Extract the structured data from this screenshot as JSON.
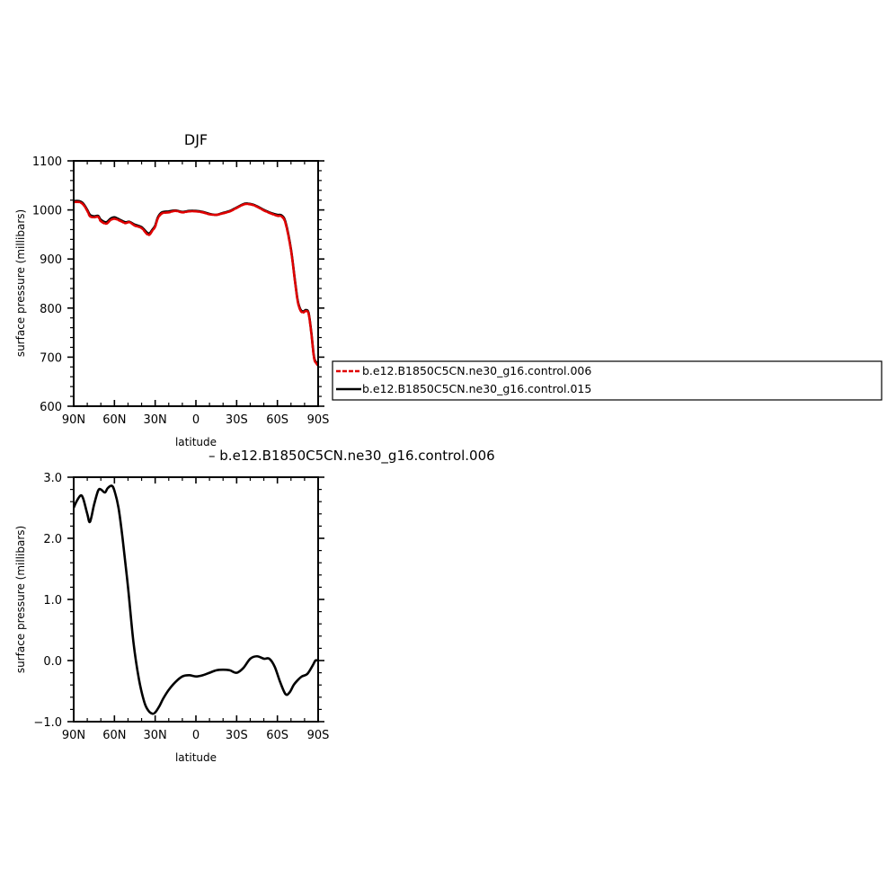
{
  "chart_data": [
    {
      "type": "line",
      "title": "DJF",
      "xlabel": "latitude",
      "ylabel": "surface pressure (millibars)",
      "xlim": [
        90,
        -90
      ],
      "ylim": [
        600,
        1100
      ],
      "xticks": [
        {
          "v": 90,
          "label": "90N"
        },
        {
          "v": 60,
          "label": "60N"
        },
        {
          "v": 30,
          "label": "30N"
        },
        {
          "v": 0,
          "label": "0"
        },
        {
          "v": -30,
          "label": "30S"
        },
        {
          "v": -60,
          "label": "60S"
        },
        {
          "v": -90,
          "label": "90S"
        }
      ],
      "yticks": [
        {
          "v": 600,
          "label": "600"
        },
        {
          "v": 700,
          "label": "700"
        },
        {
          "v": 800,
          "label": "800"
        },
        {
          "v": 900,
          "label": "900"
        },
        {
          "v": 1000,
          "label": "1000"
        },
        {
          "v": 1100,
          "label": "1100"
        }
      ],
      "legend_position": "right",
      "series": [
        {
          "name": "b.e12.B1850C5CN.ne30_g16.control.015",
          "color": "#000000",
          "dash": "solid",
          "x": [
            90,
            86,
            83,
            80,
            78,
            75,
            72,
            70,
            66,
            63,
            60,
            56,
            52,
            49,
            45,
            40,
            35,
            32,
            30,
            28,
            25,
            20,
            15,
            10,
            5,
            0,
            -5,
            -10,
            -15,
            -20,
            -25,
            -30,
            -35,
            -38,
            -42,
            -46,
            -50,
            -55,
            -60,
            -63,
            -66,
            -70,
            -73,
            -75,
            -77,
            -79,
            -81,
            -83,
            -85,
            -87,
            -89,
            -90
          ],
          "y": [
            1018,
            1018,
            1013,
            1000,
            990,
            987,
            988,
            980,
            975,
            982,
            985,
            980,
            975,
            976,
            970,
            965,
            952,
            960,
            968,
            985,
            995,
            997,
            999,
            996,
            998,
            998,
            996,
            992,
            990,
            994,
            998,
            1005,
            1012,
            1013,
            1011,
            1006,
            1000,
            994,
            990,
            989,
            975,
            920,
            855,
            815,
            797,
            793,
            796,
            790,
            750,
            700,
            688,
            685
          ]
        },
        {
          "name": "b.e12.B1850C5CN.ne30_g16.control.006",
          "color": "#e00000",
          "dash": "dashed",
          "x": [
            90,
            86,
            83,
            80,
            78,
            75,
            72,
            70,
            66,
            63,
            60,
            56,
            52,
            49,
            45,
            40,
            35,
            32,
            30,
            28,
            25,
            20,
            15,
            10,
            5,
            0,
            -5,
            -10,
            -15,
            -20,
            -25,
            -30,
            -35,
            -38,
            -42,
            -46,
            -50,
            -55,
            -60,
            -63,
            -66,
            -70,
            -73,
            -75,
            -77,
            -79,
            -81,
            -83,
            -85,
            -87,
            -89,
            -90
          ],
          "y": [
            1016,
            1016,
            1011,
            998,
            987,
            985,
            986,
            977,
            972,
            979,
            982,
            978,
            973,
            975,
            968,
            963,
            949,
            958,
            966,
            983,
            993,
            995,
            998,
            995,
            997,
            997,
            995,
            991,
            990,
            993,
            997,
            1004,
            1011,
            1012,
            1010,
            1005,
            999,
            993,
            988,
            987,
            973,
            918,
            853,
            813,
            795,
            791,
            794,
            788,
            748,
            698,
            686,
            683
          ]
        }
      ]
    },
    {
      "type": "line",
      "title": "b.e12.B1850C5CN.ne30_g16.control.006",
      "xlabel": "latitude",
      "ylabel": "surface pressure (millibars)",
      "xlim": [
        90,
        -90
      ],
      "ylim": [
        -1.0,
        3.0
      ],
      "xticks": [
        {
          "v": 90,
          "label": "90N"
        },
        {
          "v": 60,
          "label": "60N"
        },
        {
          "v": 30,
          "label": "30N"
        },
        {
          "v": 0,
          "label": "0"
        },
        {
          "v": -30,
          "label": "30S"
        },
        {
          "v": -60,
          "label": "60S"
        },
        {
          "v": -90,
          "label": "90S"
        }
      ],
      "yticks": [
        {
          "v": -1.0,
          "label": "−1.0"
        },
        {
          "v": 0.0,
          "label": "0.0"
        },
        {
          "v": 1.0,
          "label": "1.0"
        },
        {
          "v": 2.0,
          "label": "2.0"
        },
        {
          "v": 3.0,
          "label": "3.0"
        }
      ],
      "series": [
        {
          "color": "#000000",
          "dash": "solid",
          "x": [
            90,
            88,
            85,
            83,
            80,
            78,
            75,
            72,
            70,
            67,
            65,
            62,
            60,
            57,
            54,
            50,
            46,
            42,
            38,
            35,
            32,
            30,
            27,
            24,
            20,
            15,
            10,
            5,
            0,
            -5,
            -10,
            -15,
            -20,
            -25,
            -30,
            -35,
            -40,
            -45,
            -50,
            -54,
            -58,
            -62,
            -66,
            -69,
            -72,
            -75,
            -78,
            -82,
            -86,
            -88,
            -90
          ],
          "y": [
            2.5,
            2.6,
            2.7,
            2.65,
            2.4,
            2.27,
            2.55,
            2.78,
            2.8,
            2.75,
            2.82,
            2.86,
            2.78,
            2.5,
            2.0,
            1.2,
            0.3,
            -0.3,
            -0.68,
            -0.82,
            -0.87,
            -0.85,
            -0.75,
            -0.62,
            -0.48,
            -0.35,
            -0.26,
            -0.24,
            -0.26,
            -0.24,
            -0.2,
            -0.16,
            -0.15,
            -0.16,
            -0.2,
            -0.12,
            0.03,
            0.07,
            0.03,
            0.03,
            -0.1,
            -0.35,
            -0.55,
            -0.52,
            -0.4,
            -0.32,
            -0.26,
            -0.22,
            -0.08,
            0.0,
            0.0
          ]
        }
      ]
    }
  ],
  "legend": {
    "entries": [
      {
        "label": "b.e12.B1850C5CN.ne30_g16.control.006",
        "color": "#e00000",
        "dash": "dashed"
      },
      {
        "label": "b.e12.B1850C5CN.ne30_g16.control.015",
        "color": "#000000",
        "dash": "solid"
      }
    ]
  }
}
